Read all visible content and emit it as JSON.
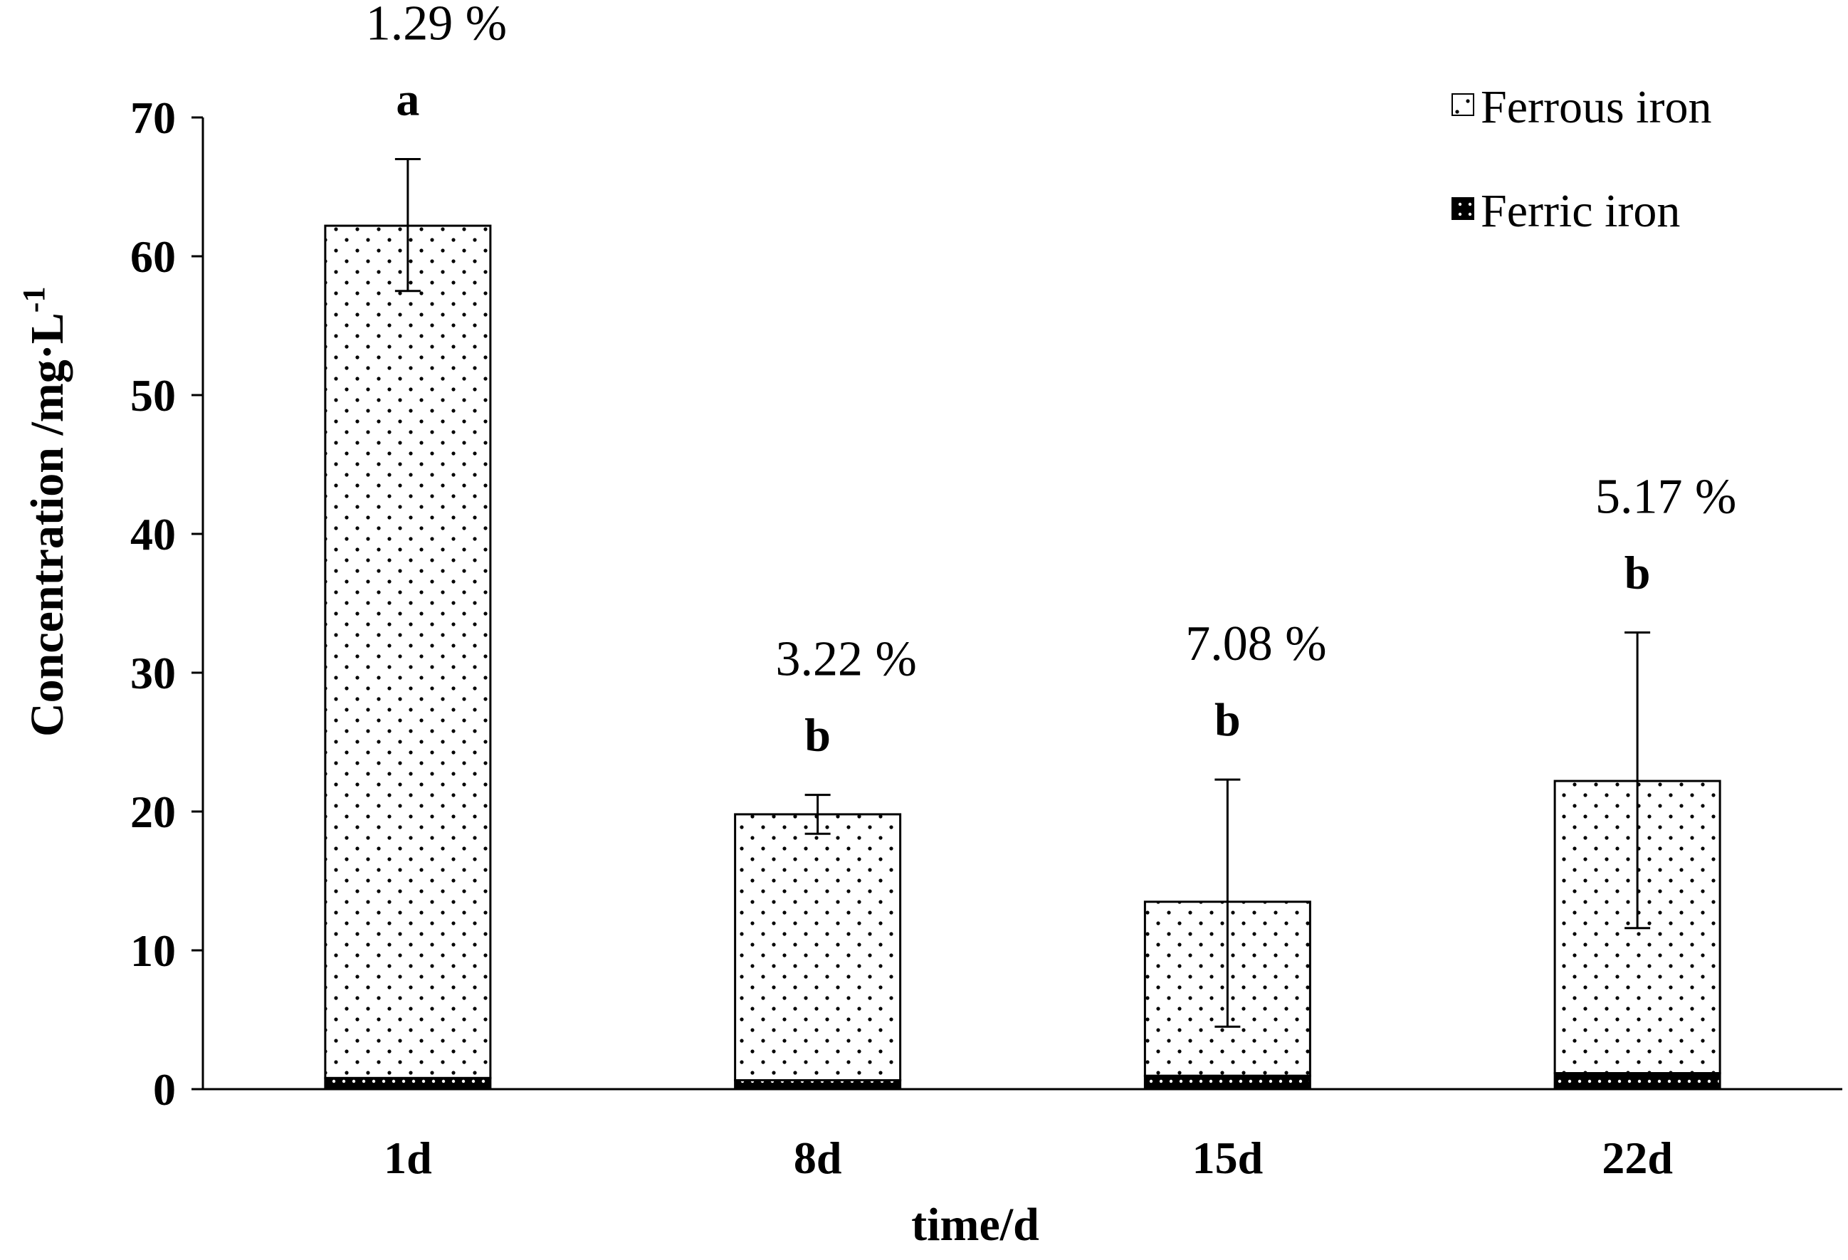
{
  "chart_data": {
    "type": "bar",
    "stacked": true,
    "categories": [
      "1d",
      "8d",
      "15d",
      "22d"
    ],
    "series": [
      {
        "name": "Ferric iron",
        "values": [
          0.8,
          0.64,
          0.96,
          1.15
        ],
        "color": "#000000",
        "pattern": "black-with-white-dots"
      },
      {
        "name": "Ferrous iron",
        "values": [
          61.4,
          19.16,
          12.54,
          21.05
        ],
        "color": "#ffffff",
        "pattern": "white-with-black-dots"
      }
    ],
    "totals": [
      62.2,
      19.8,
      13.5,
      22.2
    ],
    "error_bars": {
      "upper": [
        67.0,
        21.2,
        22.3,
        32.9
      ],
      "lower": [
        57.5,
        18.4,
        4.5,
        11.6
      ]
    },
    "percent_labels": [
      "1.29 %",
      "3.22 %",
      "7.08 %",
      "5.17 %"
    ],
    "significance_letters": [
      "a",
      "b",
      "b",
      "b"
    ],
    "xlabel": "time/d",
    "ylabel": "Concentration /mg·L",
    "ylabel_superscript": "-1",
    "ylim": [
      0,
      70
    ],
    "yticks": [
      0,
      10,
      20,
      30,
      40,
      50,
      60,
      70
    ],
    "grid": false,
    "legend_position": "top-right"
  }
}
